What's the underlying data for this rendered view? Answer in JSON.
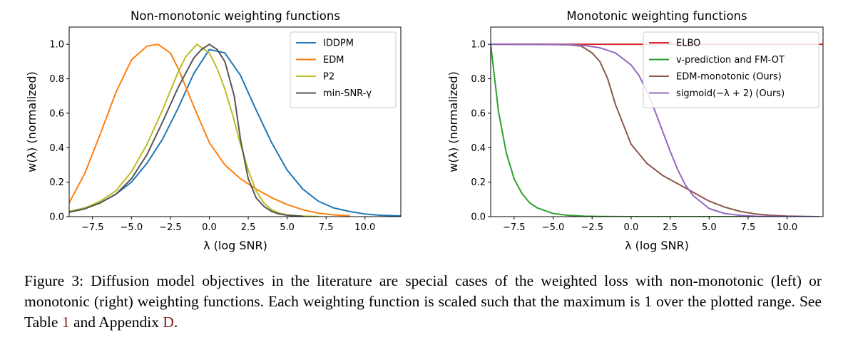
{
  "caption": {
    "part1": "Figure 3: Diffusion model objectives in the literature are special cases of the weighted loss with non-monotonic (left) or monotonic (right) weighting functions. Each weighting function is scaled such that the maximum is 1 over the plotted range. See Table ",
    "ref1": "1",
    "part2": " and Appendix ",
    "ref2": "D",
    "part3": "."
  },
  "chart_data": [
    {
      "type": "line",
      "title": "Non-monotonic weighting functions",
      "xlabel": "λ (log SNR)",
      "ylabel": "w(λ) (normalized)",
      "xlim": [
        -9.0,
        12.3
      ],
      "ylim": [
        0.0,
        1.1
      ],
      "xticks": [
        -7.5,
        -5.0,
        -2.5,
        0.0,
        2.5,
        5.0,
        7.5,
        10.0
      ],
      "xtick_labels": [
        "−7.5",
        "−5.0",
        "−2.5",
        "0.0",
        "2.5",
        "5.0",
        "7.5",
        "10.0"
      ],
      "yticks": [
        0.0,
        0.2,
        0.4,
        0.6,
        0.8,
        1.0
      ],
      "ytick_labels": [
        "0.0",
        "0.2",
        "0.4",
        "0.6",
        "0.8",
        "1.0"
      ],
      "grid": false,
      "legend": "top-right",
      "series": [
        {
          "name": "IDDPM",
          "color": "#1f77b4",
          "x": [
            -9,
            -8,
            -7,
            -6,
            -5,
            -4,
            -3,
            -2,
            -1,
            0,
            1,
            2,
            3,
            4,
            5,
            6,
            7,
            8,
            9,
            10,
            11,
            12.3
          ],
          "y": [
            0.03,
            0.05,
            0.08,
            0.13,
            0.2,
            0.31,
            0.45,
            0.63,
            0.83,
            0.97,
            0.95,
            0.82,
            0.62,
            0.43,
            0.27,
            0.16,
            0.09,
            0.05,
            0.03,
            0.015,
            0.008,
            0.004
          ]
        },
        {
          "name": "EDM",
          "color": "#ff7f0e",
          "x": [
            -9,
            -8,
            -7,
            -6,
            -5,
            -4,
            -3.3,
            -2.5,
            -2,
            -1,
            0,
            1,
            2,
            3,
            4,
            5,
            6,
            7,
            8,
            9
          ],
          "y": [
            0.08,
            0.25,
            0.48,
            0.72,
            0.91,
            0.99,
            1.0,
            0.95,
            0.86,
            0.64,
            0.43,
            0.3,
            0.22,
            0.16,
            0.11,
            0.07,
            0.04,
            0.02,
            0.01,
            0.005
          ]
        },
        {
          "name": "P2",
          "color": "#bcbd22",
          "x": [
            -9,
            -8,
            -7,
            -6,
            -5,
            -4,
            -3,
            -2,
            -1.5,
            -1,
            -0.8,
            0,
            0.5,
            1,
            1.5,
            2,
            2.5,
            3,
            3.5,
            4,
            4.5,
            5,
            6,
            7
          ],
          "y": [
            0.03,
            0.05,
            0.09,
            0.15,
            0.26,
            0.42,
            0.62,
            0.84,
            0.93,
            0.98,
            1.0,
            0.95,
            0.86,
            0.74,
            0.59,
            0.42,
            0.27,
            0.15,
            0.08,
            0.04,
            0.02,
            0.01,
            0.003,
            0.001
          ]
        },
        {
          "name": "min-SNR-γ",
          "color": "#555555",
          "x": [
            -9,
            -8,
            -7,
            -6,
            -5,
            -4,
            -3,
            -2,
            -1,
            -0.5,
            0,
            0.5,
            1,
            1.6,
            2,
            2.5,
            3,
            3.5,
            4,
            4.5,
            5,
            6
          ],
          "y": [
            0.025,
            0.045,
            0.08,
            0.13,
            0.22,
            0.36,
            0.55,
            0.75,
            0.92,
            0.97,
            1.0,
            0.97,
            0.9,
            0.7,
            0.45,
            0.22,
            0.11,
            0.06,
            0.03,
            0.015,
            0.008,
            0.002
          ]
        }
      ]
    },
    {
      "type": "line",
      "title": "Monotonic weighting functions",
      "xlabel": "λ (log SNR)",
      "ylabel": "w(λ) (normalized)",
      "xlim": [
        -9.0,
        12.3
      ],
      "ylim": [
        0.0,
        1.1
      ],
      "xticks": [
        -7.5,
        -5.0,
        -2.5,
        0.0,
        2.5,
        5.0,
        7.5,
        10.0
      ],
      "xtick_labels": [
        "−7.5",
        "−5.0",
        "−2.5",
        "0.0",
        "2.5",
        "5.0",
        "7.5",
        "10.0"
      ],
      "yticks": [
        0.0,
        0.2,
        0.4,
        0.6,
        0.8,
        1.0
      ],
      "ytick_labels": [
        "0.0",
        "0.2",
        "0.4",
        "0.6",
        "0.8",
        "1.0"
      ],
      "grid": false,
      "legend": "top-right",
      "series": [
        {
          "name": "ELBO",
          "color": "#d62728",
          "x": [
            -9,
            12.3
          ],
          "y": [
            1.0,
            1.0
          ]
        },
        {
          "name": "v-prediction and FM-OT",
          "color": "#2ca02c",
          "x": [
            -9,
            -8.5,
            -8,
            -7.5,
            -7,
            -6.5,
            -6,
            -5,
            -4,
            -3,
            -2,
            -1,
            0,
            1,
            2,
            4,
            6,
            8,
            12
          ],
          "y": [
            1.0,
            0.61,
            0.37,
            0.22,
            0.135,
            0.08,
            0.05,
            0.018,
            0.007,
            0.0025,
            0.001,
            0.0004,
            0.0001,
            0,
            0,
            0,
            0,
            0,
            0
          ]
        },
        {
          "name": "EDM-monotonic (Ours)",
          "color": "#8c564b",
          "x": [
            -9,
            -6,
            -4,
            -3.2,
            -2.5,
            -2,
            -1.5,
            -1,
            0,
            1,
            2,
            3,
            4,
            5,
            6,
            7,
            8,
            9,
            10,
            12
          ],
          "y": [
            1.0,
            1.0,
            0.997,
            0.99,
            0.95,
            0.9,
            0.8,
            0.65,
            0.42,
            0.31,
            0.24,
            0.19,
            0.14,
            0.09,
            0.055,
            0.03,
            0.015,
            0.007,
            0.003,
            0.0
          ]
        },
        {
          "name": "sigmoid(−λ + 2) (Ours)",
          "color": "#9467bd",
          "x": [
            -9,
            -4,
            -3,
            -2,
            -1,
            0,
            0.5,
            1,
            1.5,
            2,
            2.5,
            3,
            3.5,
            4,
            5,
            6,
            7,
            8,
            9,
            12
          ],
          "y": [
            1.0,
            0.998,
            0.993,
            0.98,
            0.95,
            0.88,
            0.82,
            0.73,
            0.62,
            0.5,
            0.38,
            0.27,
            0.18,
            0.12,
            0.047,
            0.018,
            0.007,
            0.002,
            0.001,
            0.0
          ]
        }
      ]
    }
  ]
}
